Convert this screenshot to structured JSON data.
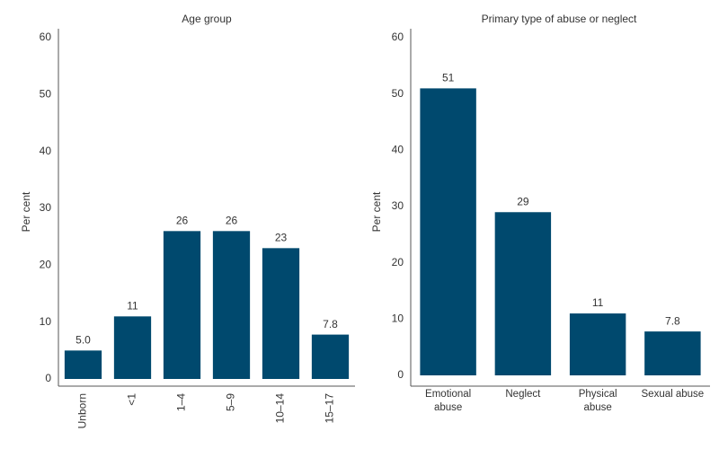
{
  "chart_data": [
    {
      "type": "bar",
      "title": "Age group",
      "y_label": "Per cent",
      "categories": [
        "Unborn",
        "<1",
        "1–4",
        "5–9",
        "10–14",
        "15–17"
      ],
      "values": [
        5.0,
        11,
        26,
        26,
        23,
        7.8
      ],
      "value_labels": [
        "5.0",
        "11",
        "26",
        "26",
        "23",
        "7.8"
      ],
      "color": "#00496e",
      "ylim": [
        0,
        60
      ],
      "yticks": [
        0,
        10,
        20,
        30,
        40,
        50,
        60
      ],
      "grid": false
    },
    {
      "type": "bar",
      "title": "Primary type of abuse or neglect",
      "y_label": "Per cent",
      "categories": [
        "Emotional abuse",
        "Neglect",
        "Physical abuse",
        "Sexual abuse"
      ],
      "values": [
        51,
        29,
        11,
        7.8
      ],
      "color": "#00496e",
      "ylim": [
        0,
        60
      ],
      "yticks": [
        0,
        10,
        20,
        30,
        40,
        50,
        60
      ],
      "grid": false
    }
  ]
}
